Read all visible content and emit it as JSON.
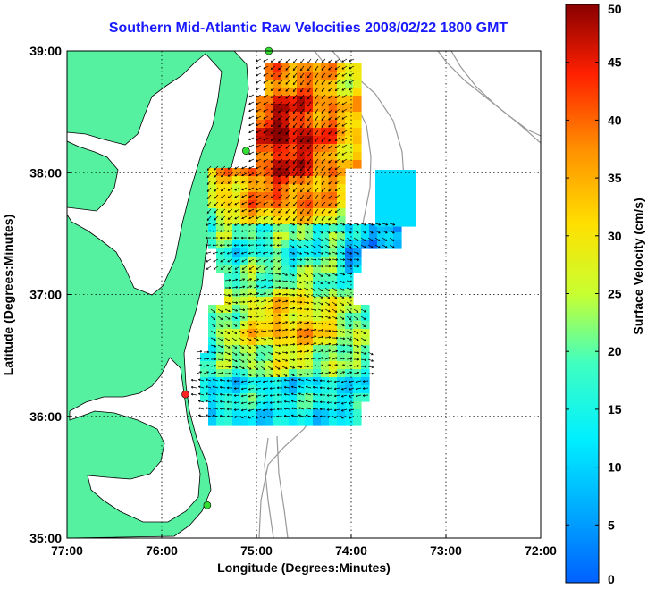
{
  "title": "Southern Mid-Atlantic Raw Velocities 2008/02/22 1800 GMT",
  "map": {
    "x_ticks": [
      "77:00",
      "76:00",
      "75:00",
      "74:00",
      "73:00",
      "72:00"
    ],
    "y_ticks": [
      "39:00",
      "38:00",
      "37:00",
      "36:00",
      "35:00"
    ],
    "xlabel": "Longitude (Degrees:Minutes)",
    "ylabel": "Latitude (Degrees:Minutes)",
    "lon_range": [
      -77,
      -72
    ],
    "lat_range": [
      35,
      39
    ],
    "grid": true,
    "land_color": "#55f0a0",
    "bathymetry_color": "#999999",
    "arrow_color": "#000000",
    "stations": [
      {
        "lon": -74.87,
        "lat": 39.0,
        "color": "#33dd33"
      },
      {
        "lon": -75.11,
        "lat": 38.18,
        "color": "#33dd33"
      },
      {
        "lon": -75.75,
        "lat": 36.18,
        "color": "#ff2222"
      },
      {
        "lon": -75.52,
        "lat": 35.27,
        "color": "#33dd33"
      }
    ]
  },
  "colorbar": {
    "label": "Surface Velocity (cm/s)",
    "ticks": [
      "50",
      "45",
      "40",
      "35",
      "30",
      "25",
      "20",
      "15",
      "10",
      "5",
      "0"
    ],
    "min": 0,
    "max": 50,
    "colormap": "jet"
  }
}
